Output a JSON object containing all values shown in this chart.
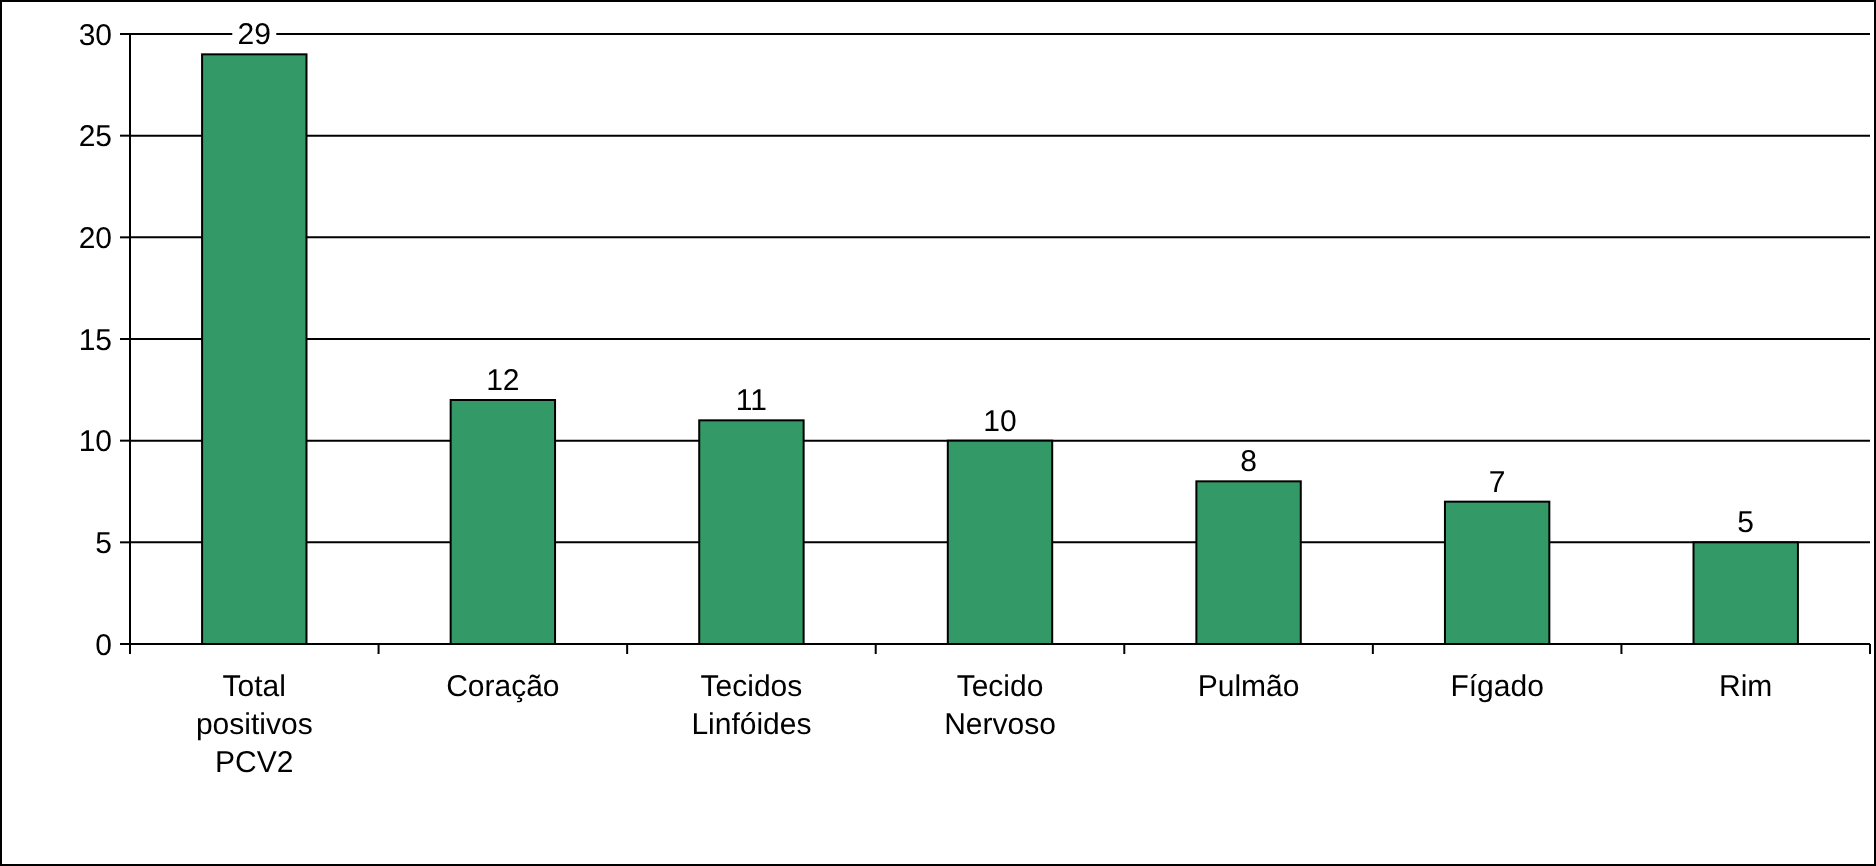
{
  "chart_data": {
    "type": "bar",
    "categories": [
      "Total positivos PCV2",
      "Coração",
      "Tecidos Linfóides",
      "Tecido Nervoso",
      "Pulmão",
      "Fígado",
      "Rim"
    ],
    "values": [
      29,
      12,
      11,
      10,
      8,
      7,
      5
    ],
    "color": "#339966",
    "ylim": [
      0,
      30
    ],
    "yticks": [
      0,
      5,
      10,
      15,
      20,
      25,
      30
    ],
    "grid": "y",
    "data_labels": true
  }
}
